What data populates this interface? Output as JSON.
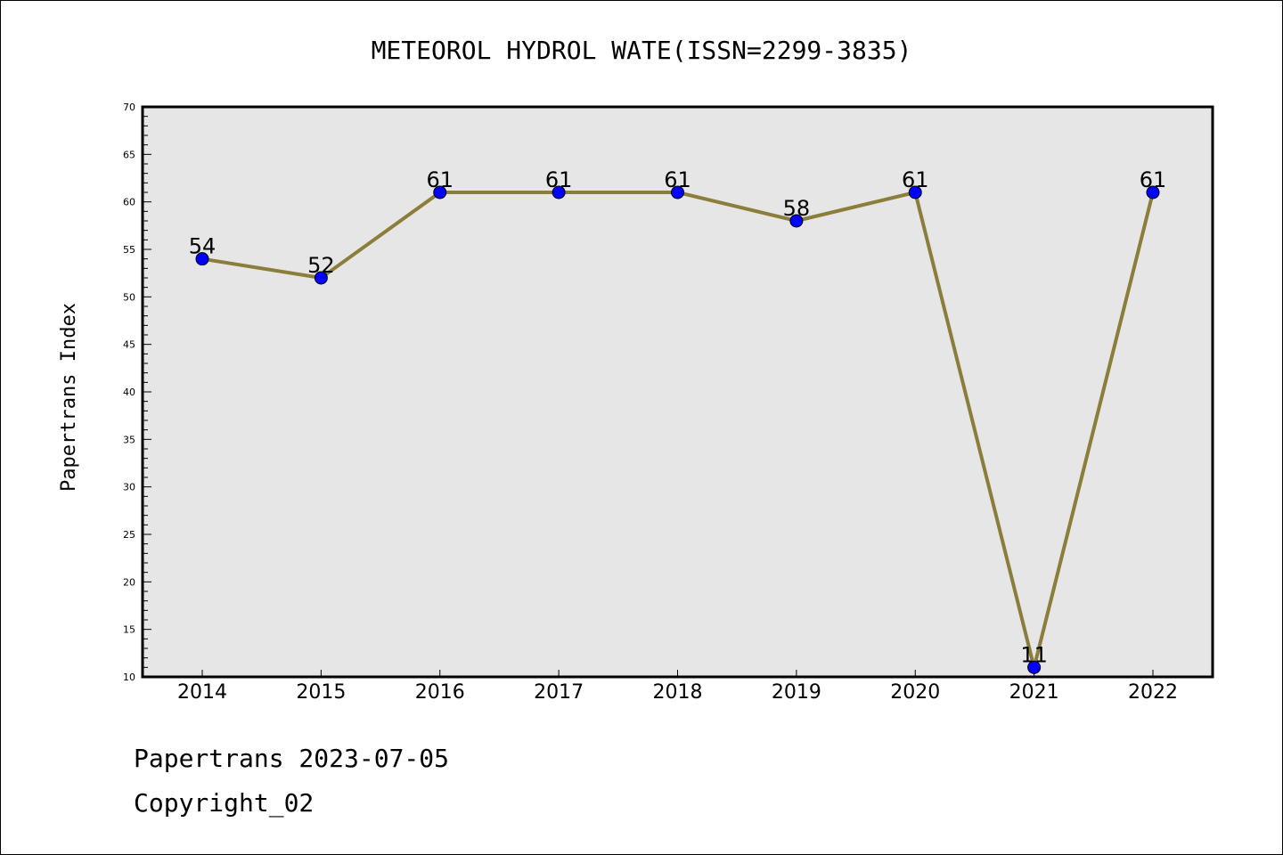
{
  "chart_data": {
    "type": "line",
    "title": "METEOROL HYDROL WATE(ISSN=2299-3835)",
    "ylabel": "Papertrans Index",
    "xlabel": "",
    "categories": [
      "2014",
      "2015",
      "2016",
      "2017",
      "2018",
      "2019",
      "2020",
      "2021",
      "2022"
    ],
    "series": [
      {
        "values": [
          54,
          52,
          61,
          61,
          61,
          58,
          61,
          11,
          61
        ]
      }
    ],
    "ylim": [
      10,
      70
    ],
    "yticks": [
      10,
      15,
      20,
      25,
      30,
      35,
      40,
      45,
      50,
      55,
      60,
      65,
      70
    ],
    "data_labels": [
      "54",
      "52",
      "61",
      "61",
      "61",
      "58",
      "61",
      "11",
      "61"
    ],
    "colors": {
      "line": "#8b7d3a",
      "marker": "#0000ff",
      "plot_bg": "#e6e6e6"
    },
    "grid": false,
    "legend": "none"
  },
  "footer": {
    "line1": "Papertrans 2023-07-05",
    "line2": "Copyright_02"
  }
}
